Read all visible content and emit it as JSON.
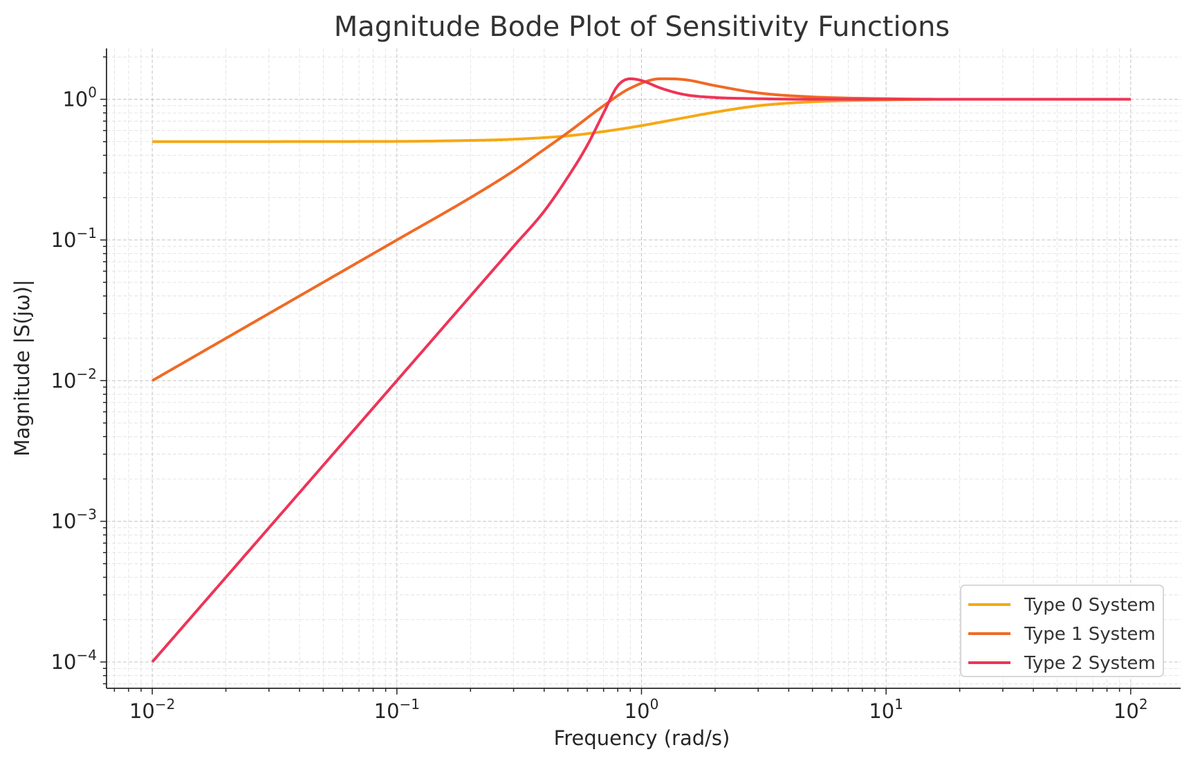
{
  "chart_data": {
    "type": "line",
    "title": "Magnitude Bode Plot of Sensitivity Functions",
    "xlabel": "Frequency (rad/s)",
    "ylabel": "Magnitude |S(jω)|",
    "xscale": "log",
    "yscale": "log",
    "xlim": [
      0.0065,
      160
    ],
    "ylim": [
      6.5e-05,
      2.3
    ],
    "grid": "on (major and minor, dashed)",
    "legend_position": "lower-right",
    "x_ticks": [
      {
        "base": "10",
        "exp": "−2",
        "value": 0.01
      },
      {
        "base": "10",
        "exp": "−1",
        "value": 0.1
      },
      {
        "base": "10",
        "exp": "0",
        "value": 1
      },
      {
        "base": "10",
        "exp": "1",
        "value": 10
      },
      {
        "base": "10",
        "exp": "2",
        "value": 100
      }
    ],
    "y_ticks": [
      {
        "base": "10",
        "exp": "0",
        "value": 1
      },
      {
        "base": "10",
        "exp": "−1",
        "value": 0.1
      },
      {
        "base": "10",
        "exp": "−2",
        "value": 0.01
      },
      {
        "base": "10",
        "exp": "−3",
        "value": 0.001
      },
      {
        "base": "10",
        "exp": "−4",
        "value": 0.0001
      }
    ],
    "series": [
      {
        "name": "Type 0 System",
        "color": "#f5a914",
        "x": [
          0.01,
          0.02,
          0.05,
          0.1,
          0.2,
          0.3,
          0.5,
          0.7,
          1,
          1.5,
          2,
          3,
          5,
          10,
          20,
          50,
          100
        ],
        "y": [
          0.5,
          0.5,
          0.501,
          0.502,
          0.51,
          0.52,
          0.55,
          0.59,
          0.65,
          0.74,
          0.81,
          0.9,
          0.96,
          0.99,
          1.0,
          1.0,
          1.0
        ]
      },
      {
        "name": "Type 1 System",
        "color": "#f06a25",
        "x": [
          0.01,
          0.02,
          0.05,
          0.1,
          0.2,
          0.3,
          0.4,
          0.5,
          0.7,
          0.9,
          1.2,
          1.5,
          2,
          3,
          5,
          10,
          20,
          50,
          100
        ],
        "y": [
          0.01,
          0.02,
          0.05,
          0.1,
          0.2,
          0.31,
          0.44,
          0.58,
          0.9,
          1.2,
          1.4,
          1.38,
          1.25,
          1.11,
          1.04,
          1.01,
          1.0,
          1.0,
          1.0
        ]
      },
      {
        "name": "Type 2 System",
        "color": "#ee3457",
        "x": [
          0.01,
          0.02,
          0.05,
          0.1,
          0.2,
          0.3,
          0.4,
          0.5,
          0.6,
          0.7,
          0.8,
          0.9,
          1.0,
          1.2,
          1.5,
          2,
          3,
          5,
          10,
          100
        ],
        "y": [
          0.0001,
          0.0004,
          0.0025,
          0.01,
          0.04,
          0.09,
          0.16,
          0.28,
          0.47,
          0.8,
          1.25,
          1.4,
          1.36,
          1.2,
          1.08,
          1.03,
          1.01,
          1.0,
          1.0,
          1.0
        ]
      }
    ]
  }
}
